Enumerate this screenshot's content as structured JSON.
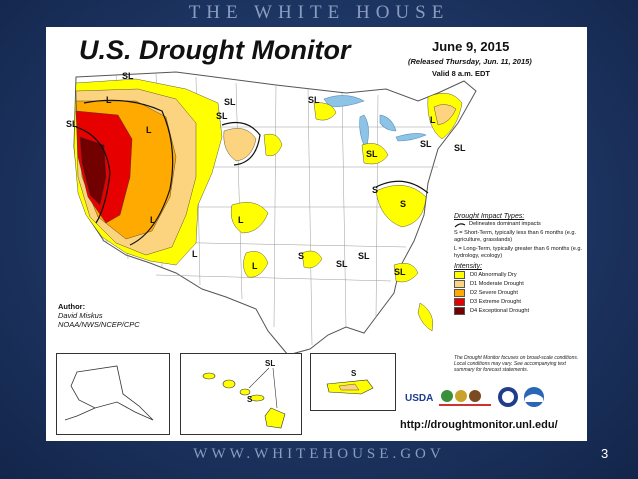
{
  "slide": {
    "header": "THE WHITE HOUSE",
    "footer": "WWW.WHITEHOUSE.GOV",
    "page_number": "3"
  },
  "map": {
    "title": "U.S. Drought Monitor",
    "date": "June 9, 2015",
    "released": "(Released Thursday, Jun. 11, 2015)",
    "valid": "Valid 8 a.m. EDT",
    "author_label": "Author:",
    "author_name": "David Miskus",
    "author_org": "NOAA/NWS/NCEP/CPC",
    "url": "http://droughtmonitor.unl.edu/",
    "region_labels": [
      "SL",
      "L",
      "S"
    ]
  },
  "legend": {
    "impact_heading": "Drought Impact Types:",
    "delineates": "Delineates dominant impacts",
    "short_term": "S = Short-Term, typically less than 6 months (e.g. agriculture, grasslands)",
    "long_term": "L = Long-Term, typically greater than 6 months (e.g. hydrology, ecology)",
    "intensity_heading": "Intensity:",
    "levels": [
      {
        "label": "D0 Abnormally Dry",
        "color": "#ffff00"
      },
      {
        "label": "D1 Moderate Drought",
        "color": "#fcd37f"
      },
      {
        "label": "D2 Severe Drought",
        "color": "#ffaa00"
      },
      {
        "label": "D3 Extreme Drought",
        "color": "#e60000"
      },
      {
        "label": "D4 Exceptional Drought",
        "color": "#730000"
      }
    ],
    "note": "The Drought Monitor focuses on broad-scale conditions. Local conditions may vary. See accompanying text summary for forecast statements."
  },
  "logos": [
    "USDA",
    "National Drought Mitigation Center",
    "Department of Commerce",
    "NOAA"
  ]
}
